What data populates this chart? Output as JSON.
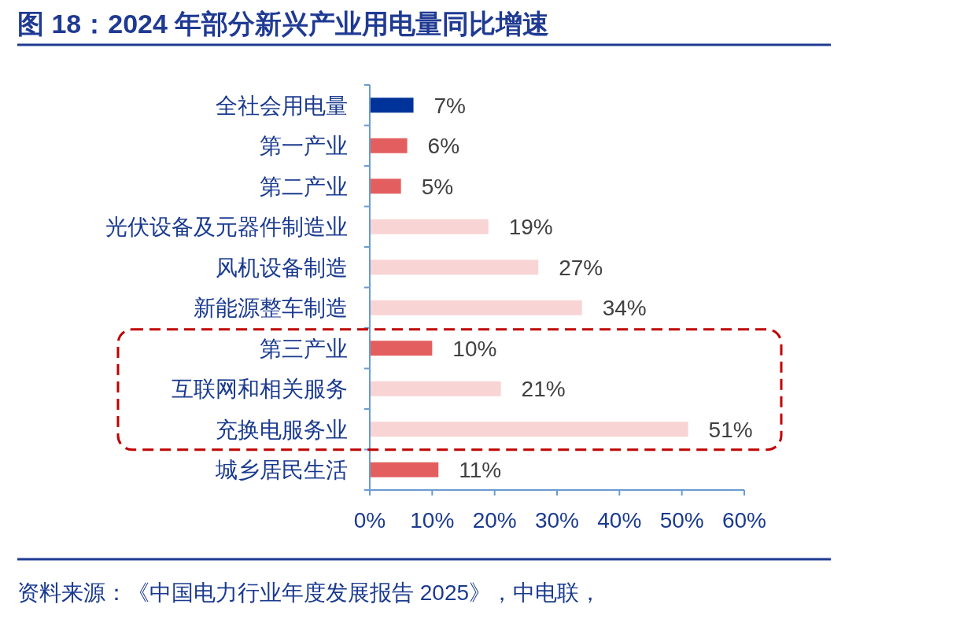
{
  "chart_data": {
    "type": "bar",
    "orientation": "horizontal",
    "title": "图 18：2024 年部分新兴产业用电量同比增速",
    "categories": [
      "全社会用电量",
      "第一产业",
      "第二产业",
      "光伏设备及元器件制造业",
      "风机设备制造",
      "新能源整车制造",
      "第三产业",
      "互联网和相关服务",
      "充换电服务业",
      "城乡居民生活"
    ],
    "values": [
      7,
      6,
      5,
      19,
      27,
      34,
      10,
      21,
      51,
      11
    ],
    "colors": [
      "#003399",
      "#e35f5f",
      "#e35f5f",
      "#f9d4d4",
      "#f9d4d4",
      "#f9d4d4",
      "#e35f5f",
      "#f9d4d4",
      "#f9d4d4",
      "#e35f5f"
    ],
    "value_labels": [
      "7%",
      "6%",
      "5%",
      "19%",
      "27%",
      "34%",
      "10%",
      "21%",
      "51%",
      "11%"
    ],
    "xlim": [
      0,
      60
    ],
    "xticks": [
      {
        "value": 0,
        "label": "0%"
      },
      {
        "value": 10,
        "label": "10%"
      },
      {
        "value": 20,
        "label": "20%"
      },
      {
        "value": 30,
        "label": "30%"
      },
      {
        "value": 40,
        "label": "40%"
      },
      {
        "value": 50,
        "label": "50%"
      },
      {
        "value": 60,
        "label": "60%"
      }
    ],
    "grid": false,
    "annotations": [
      "资料来源：《中国电力行业年度发展报告 2025》，中电联，"
    ]
  }
}
